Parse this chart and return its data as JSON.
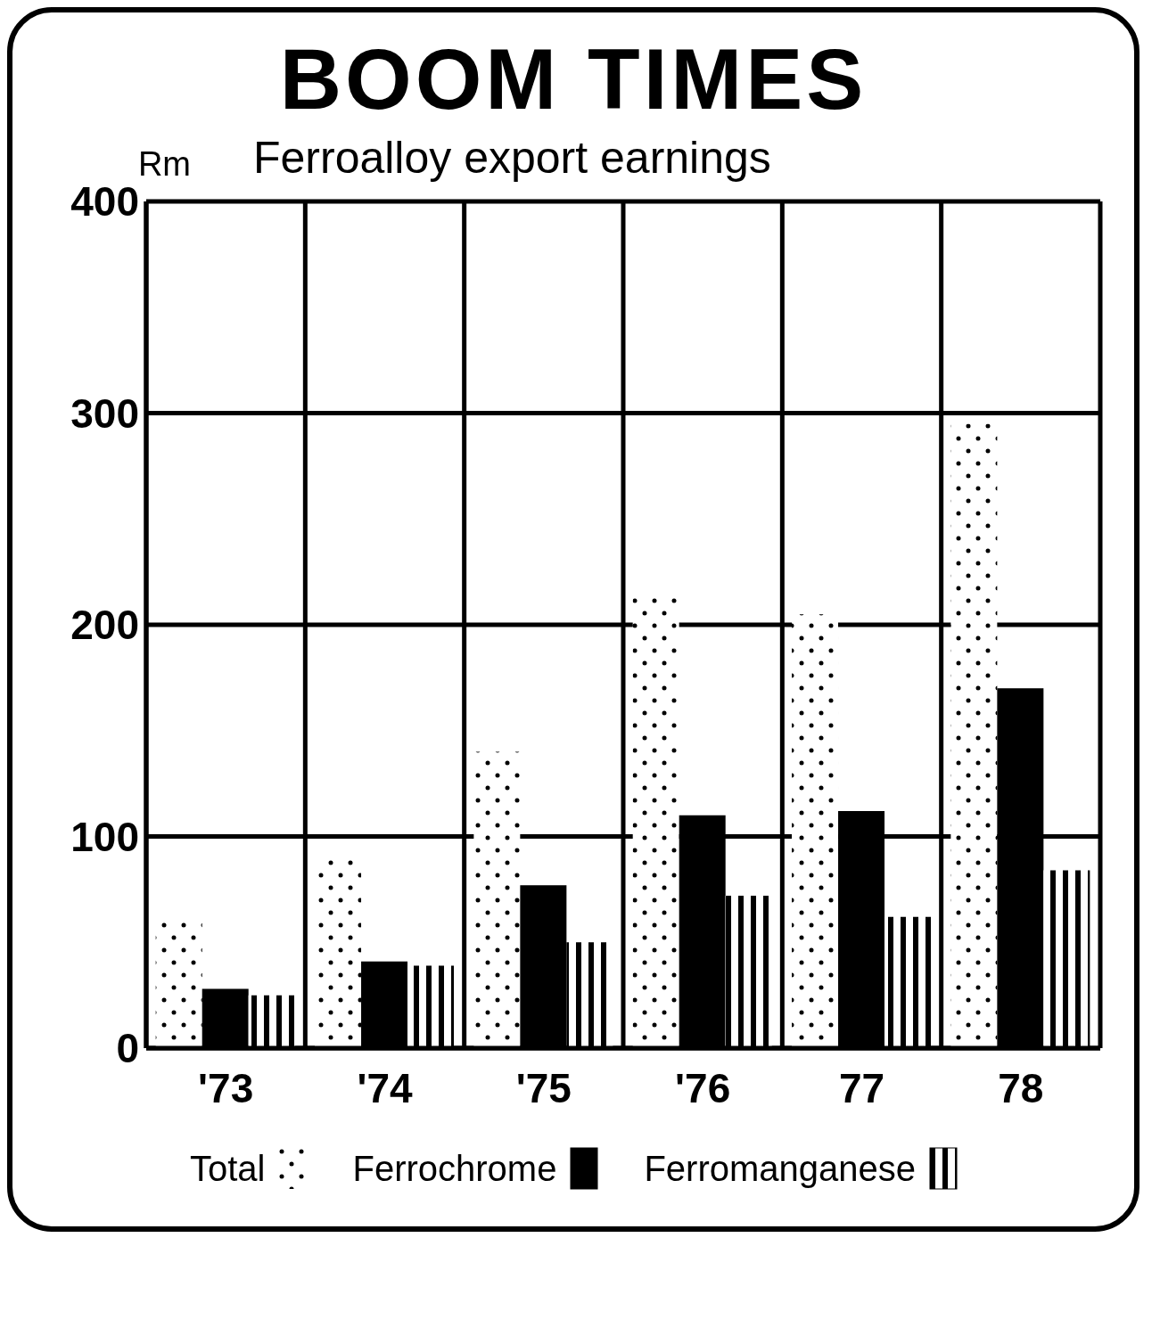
{
  "chart_data": {
    "type": "bar",
    "title": "BOOM TIMES",
    "subtitle": "Ferroalloy export earnings",
    "ylabel": "Rm",
    "categories": [
      "'73",
      "'74",
      "'75",
      "'76",
      "77",
      "78"
    ],
    "series": [
      {
        "name": "Total",
        "color": "#000000",
        "values": [
          60,
          90,
          140,
          213,
          205,
          295
        ]
      },
      {
        "name": "Ferrochrome",
        "color": "#000000",
        "values": [
          28,
          41,
          77,
          110,
          112,
          170
        ]
      },
      {
        "name": "Ferromanganese",
        "color": "#000000",
        "values": [
          25,
          39,
          50,
          72,
          62,
          84
        ]
      }
    ],
    "ylim": [
      0,
      400
    ],
    "yticks": [
      0,
      100,
      200,
      300,
      400
    ],
    "grid": true,
    "legend": "bottom"
  }
}
